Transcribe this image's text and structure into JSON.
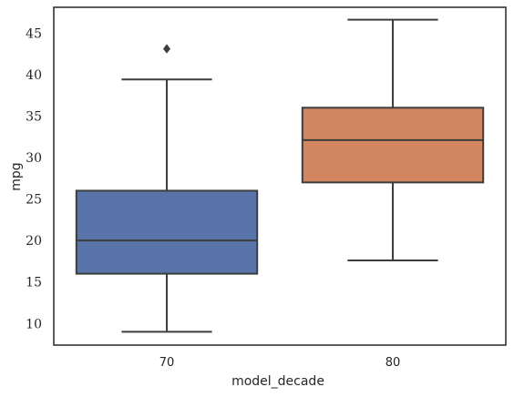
{
  "chart_data": {
    "type": "box",
    "xlabel": "model_decade",
    "ylabel": "mpg",
    "categories": [
      "70",
      "80"
    ],
    "ylim": [
      7.4,
      48.1
    ],
    "yticks": [
      10,
      15,
      20,
      25,
      30,
      35,
      40,
      45
    ],
    "grid": false,
    "boxes": [
      {
        "category": "70",
        "whisker_low": 9.0,
        "q1": 16.0,
        "median": 20.0,
        "q3": 26.0,
        "whisker_high": 39.4,
        "outliers": [
          43.1
        ],
        "color": "#5874a8"
      },
      {
        "category": "80",
        "whisker_low": 17.6,
        "q1": 27.0,
        "median": 32.1,
        "q3": 36.0,
        "whisker_high": 46.6,
        "outliers": [],
        "color": "#d18660"
      }
    ],
    "colors": {
      "axis": "#262626",
      "box_edge": "#3d3d3d"
    }
  }
}
